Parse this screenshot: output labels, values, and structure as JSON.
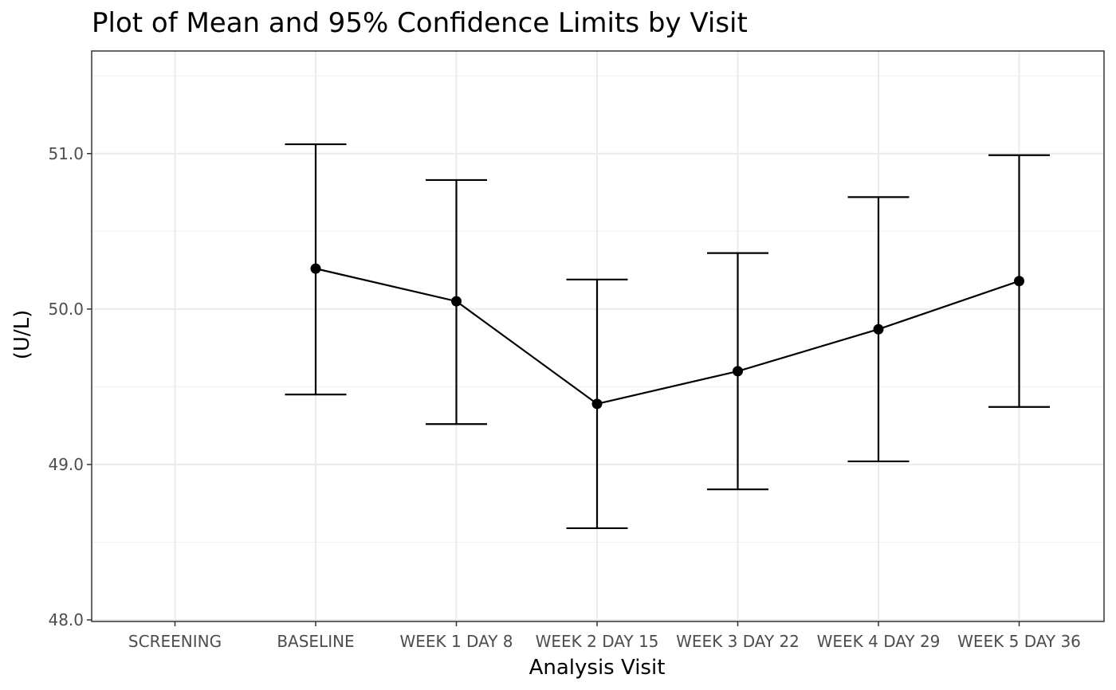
{
  "chart_data": {
    "type": "line",
    "title": "Plot of Mean and 95% Confidence Limits by Visit",
    "xlabel": "Analysis Visit",
    "ylabel": "(U/L)",
    "categories": [
      "SCREENING",
      "BASELINE",
      "WEEK 1 DAY 8",
      "WEEK 2 DAY 15",
      "WEEK 3 DAY 22",
      "WEEK 4 DAY 29",
      "WEEK 5 DAY 36"
    ],
    "series": [
      {
        "values": [
          null,
          50.26,
          50.05,
          49.39,
          49.6,
          49.87,
          50.18
        ],
        "lower": [
          null,
          49.45,
          49.26,
          48.59,
          48.84,
          49.02,
          49.37
        ],
        "upper": [
          null,
          51.06,
          50.83,
          50.19,
          50.36,
          50.72,
          50.99
        ]
      }
    ],
    "ylim": [
      47.99,
      51.66
    ],
    "y_ticks": [
      48.0,
      49.0,
      50.0,
      51.0
    ],
    "y_tick_labels": [
      "48.0",
      "49.0",
      "50.0",
      "51.0"
    ],
    "grid": true,
    "colors": {
      "series": "#000000",
      "grid_major": "#ebebeb",
      "grid_minor": "#f2f2f2",
      "panel_border": "#333333",
      "tick_label": "#4d4d4d"
    }
  }
}
